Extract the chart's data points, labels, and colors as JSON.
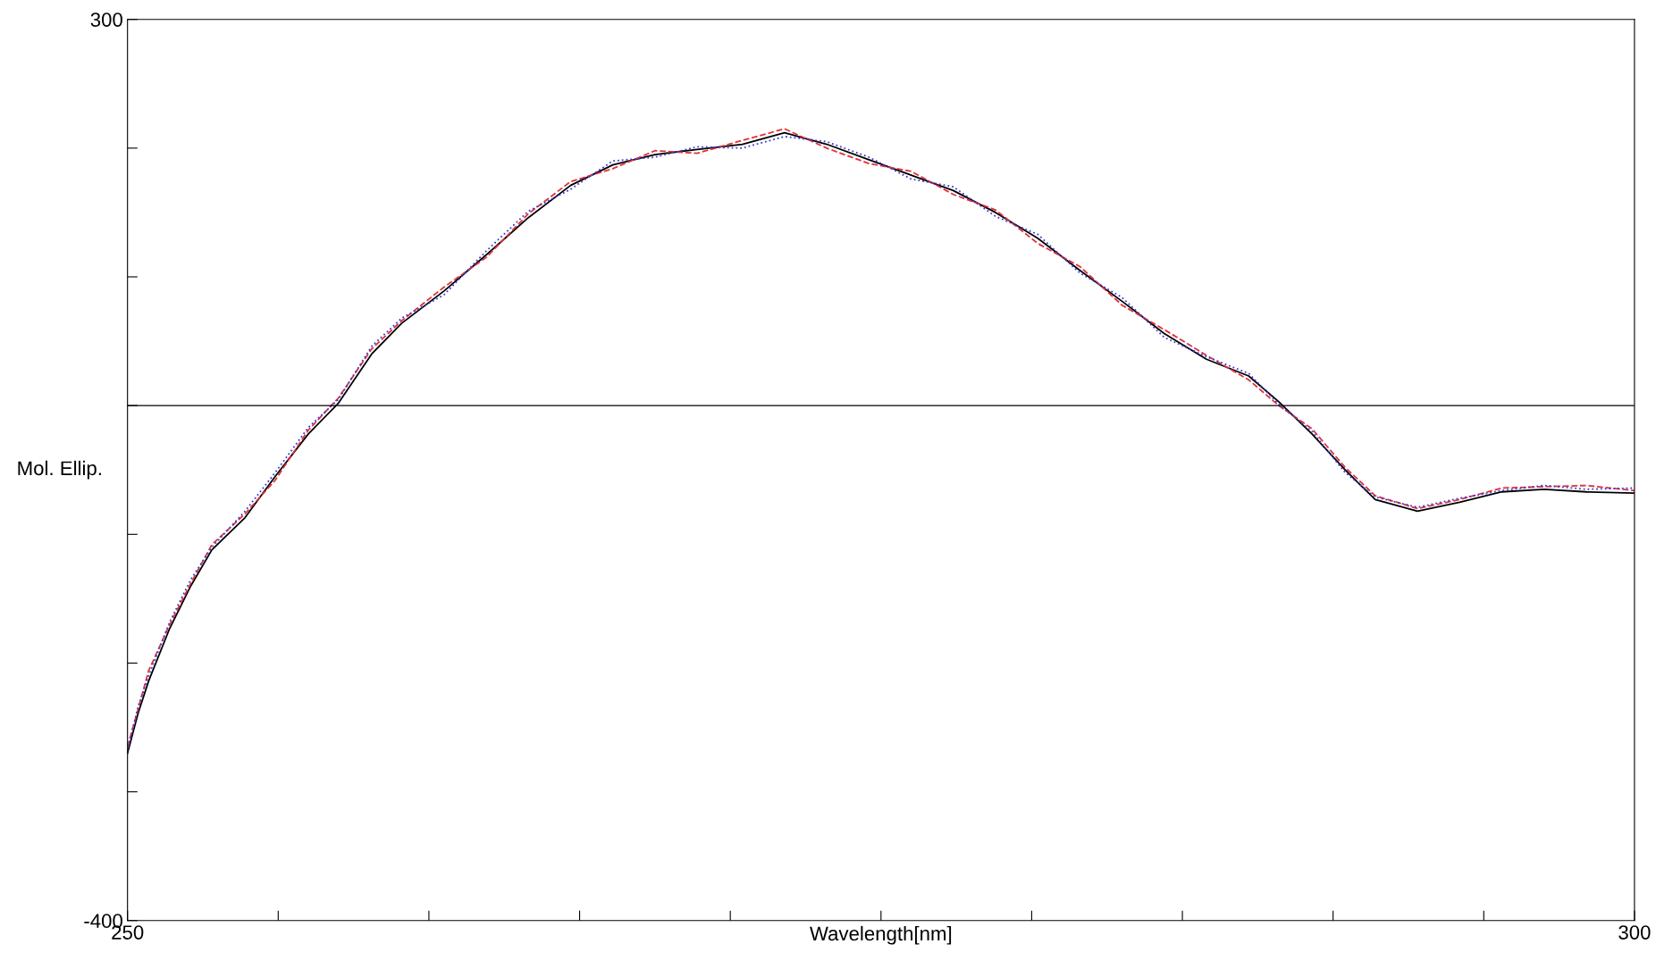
{
  "chart_data": {
    "type": "line",
    "xlabel": "Wavelength[nm]",
    "ylabel": "Mol. Ellip.",
    "xlim": [
      250,
      300
    ],
    "ylim": [
      -400,
      300
    ],
    "xticks": [
      250,
      {
        "value": 255,
        "label": null
      },
      {
        "value": 260,
        "label": null
      },
      {
        "value": 265,
        "label": null
      },
      {
        "value": 270,
        "label": null
      },
      {
        "value": 275,
        "label": null
      },
      {
        "value": 280,
        "label": null
      },
      {
        "value": 285,
        "label": null
      },
      {
        "value": 290,
        "label": null
      },
      {
        "value": 295,
        "label": null
      },
      300
    ],
    "yticks": [
      -400,
      {
        "value": -300,
        "label": null
      },
      {
        "value": -200,
        "label": null
      },
      {
        "value": -100,
        "label": null
      },
      {
        "value": 0,
        "label": null
      },
      {
        "value": 100,
        "label": null
      },
      {
        "value": 200,
        "label": null
      },
      300
    ],
    "grid": false,
    "legend": false,
    "ref_lines": [
      {
        "axis": "y",
        "value": 0,
        "color": "#000000"
      }
    ],
    "series": [
      {
        "color": "#000000",
        "line_style": "solid",
        "x": [
          250,
          250.35,
          250.7,
          251.4,
          252.1,
          252.8,
          253.9,
          254.9,
          256.0,
          257.0,
          258.1,
          259.1,
          260.5,
          261.9,
          263.3,
          264.7,
          266.1,
          267.5,
          268.9,
          270.4,
          271.8,
          273.2,
          274.6,
          276.0,
          277.4,
          278.8,
          280.2,
          281.6,
          283.0,
          284.4,
          285.8,
          287.2,
          288.2,
          289.3,
          290.4,
          291.4,
          292.8,
          294.2,
          295.6,
          297.0,
          298.4,
          300
        ],
        "values": [
          -270,
          -239,
          -214,
          -173,
          -140,
          -112,
          -87,
          -55,
          -22,
          2,
          40,
          64,
          89,
          117,
          146,
          171,
          187,
          195,
          199,
          203,
          212,
          203,
          191,
          179,
          167,
          150,
          130,
          105,
          81,
          56,
          36,
          23,
          3,
          -22,
          -50,
          -73,
          -82,
          -75,
          -67,
          -65,
          -67,
          -68
        ]
      },
      {
        "color": "#e0303a",
        "line_style": "dashed",
        "x": [
          250,
          250.35,
          250.7,
          251.4,
          252.1,
          252.8,
          253.9,
          254.9,
          256.0,
          257.0,
          258.1,
          259.1,
          260.5,
          261.9,
          263.3,
          264.7,
          266.1,
          267.5,
          268.9,
          270.4,
          271.8,
          273.2,
          274.6,
          276.0,
          277.4,
          278.8,
          280.2,
          281.6,
          283.0,
          284.4,
          285.8,
          287.2,
          288.2,
          289.3,
          290.4,
          291.4,
          292.8,
          294.2,
          295.6,
          297.0,
          298.4,
          300
        ],
        "values": [
          -265,
          -236,
          -206,
          -170,
          -138,
          -108,
          -84,
          -58,
          -19,
          6,
          44,
          66,
          92,
          115,
          149,
          174,
          184,
          198,
          196,
          206,
          215,
          200,
          188,
          182,
          164,
          152,
          126,
          108,
          78,
          59,
          39,
          20,
          0,
          -18,
          -48,
          -70,
          -80,
          -73,
          -64,
          -63,
          -62,
          -66
        ]
      },
      {
        "color": "#3a3ad8",
        "line_style": "dotted",
        "x": [
          250,
          250.35,
          250.7,
          251.4,
          252.1,
          252.8,
          253.9,
          254.9,
          256.0,
          257.0,
          258.1,
          259.1,
          260.5,
          261.9,
          263.3,
          264.7,
          266.1,
          267.5,
          268.9,
          270.4,
          271.8,
          273.2,
          274.6,
          276.0,
          277.4,
          278.8,
          280.2,
          281.6,
          283.0,
          284.4,
          285.8,
          287.2,
          288.2,
          289.3,
          290.4,
          291.4,
          292.8,
          294.2,
          295.6,
          297.0,
          298.4,
          300
        ],
        "values": [
          -268,
          -234,
          -210,
          -168,
          -135,
          -110,
          -82,
          -52,
          -17,
          5,
          46,
          68,
          86,
          120,
          151,
          168,
          190,
          193,
          201,
          200,
          209,
          205,
          193,
          176,
          170,
          147,
          133,
          103,
          84,
          53,
          38,
          25,
          1,
          -20,
          -52,
          -71,
          -79,
          -72,
          -66,
          -62,
          -65,
          -64
        ]
      }
    ]
  }
}
